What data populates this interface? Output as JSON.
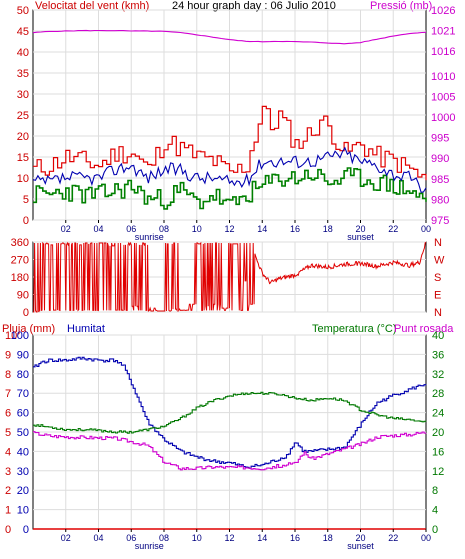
{
  "header": {
    "left_label": "Velocitat del vent (kmh)",
    "title": "24 hour graph day : 06 Julio 2010",
    "right_label": "Pressió (mb)"
  },
  "mid": {
    "dir_labels": [
      "N",
      "W",
      "S",
      "E",
      "N"
    ]
  },
  "bottom_header": {
    "rain_label": "Pluja (mm)",
    "hum_label": "Humitat",
    "temp_label": "Temperatura (°C)",
    "dew_label": "Punt rosada"
  },
  "colors": {
    "wind_gust": "#e00000",
    "wind_avg": "#0000b0",
    "wind_min": "#008000",
    "pressure": "#d000d0",
    "direction": "#e00000",
    "humidity": "#0000b0",
    "temperature": "#007800",
    "dew_point": "#d000d0",
    "rain": "#e00000",
    "frame": "#000000"
  },
  "chart_data": [
    {
      "type": "line",
      "title": "24 hour graph day : 06 Julio 2010",
      "x_ticks": [
        "02",
        "04",
        "06",
        "08",
        "10",
        "12",
        "14",
        "16",
        "18",
        "20",
        "22",
        "00"
      ],
      "x_annotations": {
        "sunrise": "sunrise",
        "sunset": "sunset",
        "sunrise_hour": 7.1,
        "sunset_hour": 20.0
      },
      "xlim": [
        0,
        24
      ],
      "y_left": {
        "label": "Velocitat del vent (kmh)",
        "ticks": [
          0,
          5,
          10,
          15,
          20,
          25,
          30,
          35,
          40,
          45,
          50
        ],
        "lim": [
          0,
          50
        ]
      },
      "y_right": {
        "label": "Pressió (mb)",
        "ticks": [
          975,
          980,
          985,
          990,
          995,
          1000,
          1005,
          1010,
          1016,
          1021,
          1026
        ],
        "lim": [
          975,
          1026
        ]
      },
      "series": [
        {
          "name": "Velocitat del vent (kmh)",
          "axis": "left",
          "x": [
            0,
            1,
            2,
            3,
            4,
            5,
            6,
            7,
            8,
            9,
            10,
            11,
            12,
            13,
            13.5,
            14,
            14.5,
            15,
            16,
            17,
            17.5,
            18,
            19,
            20,
            21,
            22,
            23,
            24
          ],
          "values": [
            12,
            13,
            15,
            14,
            13,
            16,
            16,
            12,
            19,
            17,
            15,
            14,
            11,
            13,
            20,
            27,
            22,
            25,
            18,
            21,
            24,
            22,
            16,
            18,
            15,
            14,
            12,
            9
          ]
        },
        {
          "name": "",
          "axis": "left",
          "x": [
            0,
            1,
            2,
            3,
            4,
            5,
            6,
            7,
            8,
            9,
            10,
            11,
            12,
            13,
            14,
            15,
            16,
            17,
            18,
            19,
            20,
            21,
            22,
            23,
            24
          ],
          "values": [
            9,
            9,
            10,
            10,
            10,
            12,
            13,
            10,
            12,
            12,
            10,
            10,
            9,
            9,
            14,
            14,
            14,
            14,
            15,
            16,
            14,
            13,
            11,
            10,
            7
          ]
        },
        {
          "name": "",
          "axis": "left",
          "x": [
            0,
            1,
            2,
            3,
            4,
            5,
            6,
            7,
            8,
            9,
            10,
            11,
            12,
            13,
            14,
            15,
            16,
            17,
            18,
            19,
            20,
            21,
            22,
            23,
            24
          ],
          "values": [
            6,
            6,
            7,
            6,
            6,
            7,
            8,
            5,
            5,
            7,
            4,
            6,
            3,
            6,
            8,
            10,
            10,
            11,
            9,
            10,
            10,
            9,
            8,
            7,
            4
          ]
        },
        {
          "name": "Pressió (mb)",
          "axis": "right",
          "x": [
            0,
            1,
            2,
            3,
            4,
            5,
            6,
            7,
            8,
            9,
            10,
            11,
            12,
            13,
            14,
            15,
            16,
            17,
            18,
            19,
            20,
            21,
            22,
            23,
            24
          ],
          "values": [
            1020.5,
            1020.8,
            1020.9,
            1021.0,
            1021.0,
            1021.0,
            1020.9,
            1020.9,
            1020.8,
            1020.5,
            1020.0,
            1019.4,
            1018.8,
            1018.4,
            1018.3,
            1018.4,
            1018.3,
            1018.2,
            1018.0,
            1017.8,
            1018.1,
            1018.9,
            1019.7,
            1020.3,
            1020.6
          ]
        }
      ]
    },
    {
      "type": "line",
      "title": "",
      "xlim": [
        0,
        24
      ],
      "y_left": {
        "ticks": [
          0,
          90,
          180,
          270,
          360
        ],
        "lim": [
          0,
          360
        ]
      },
      "y_right": {
        "ticks": [
          "N",
          "E",
          "S",
          "W",
          "N"
        ]
      },
      "series": [
        {
          "name": "",
          "x": [
            0,
            0.5,
            0.6,
            1.0,
            1.2,
            1.6,
            2.0,
            2.4,
            2.8,
            3.2,
            3.6,
            4.0,
            4.5,
            5.0,
            5.5,
            6.0,
            6.4,
            7.0,
            7.5,
            8.0,
            8.5,
            9.0,
            9.5,
            10.0,
            10.5,
            11.0,
            11.5,
            12.0,
            12.5,
            13.0,
            13.5,
            14.0,
            14.5,
            15.0,
            16.0,
            17.0,
            18.0,
            19.0,
            20.0,
            21.0,
            22.0,
            23.0,
            23.6,
            24.0
          ],
          "values": [
            0,
            10,
            350,
            345,
            10,
            350,
            345,
            12,
            345,
            350,
            8,
            355,
            340,
            10,
            345,
            30,
            345,
            20,
            5,
            350,
            15,
            10,
            40,
            350,
            30,
            40,
            20,
            350,
            160,
            40,
            300,
            200,
            150,
            170,
            190,
            240,
            230,
            245,
            250,
            235,
            255,
            240,
            255,
            360
          ]
        }
      ]
    },
    {
      "type": "line",
      "title": "",
      "xlim": [
        0,
        24
      ],
      "y_left_rain": {
        "label": "Pluja (mm)",
        "ticks": [
          0,
          1,
          2,
          3,
          4,
          5,
          6,
          7,
          8,
          9,
          10
        ],
        "lim": [
          0,
          10
        ]
      },
      "y_left_hum": {
        "label": "Humitat",
        "ticks": [
          0,
          10,
          20,
          30,
          40,
          50,
          60,
          70,
          80,
          90,
          100
        ],
        "lim": [
          0,
          100
        ]
      },
      "y_right": {
        "label": "Temperatura (°C)",
        "ticks": [
          0,
          4,
          8,
          12,
          16,
          20,
          24,
          28,
          32,
          36,
          40
        ],
        "lim": [
          0,
          40
        ]
      },
      "series": [
        {
          "name": "Pluja (mm)",
          "axis": "rain",
          "x": [
            0,
            24
          ],
          "values": [
            0,
            0
          ]
        },
        {
          "name": "Humitat",
          "axis": "hum",
          "x": [
            0,
            0.5,
            1,
            2,
            3,
            4,
            5,
            5.5,
            6,
            6.5,
            7,
            8,
            9,
            10,
            11,
            12,
            13,
            14,
            15,
            15.5,
            16,
            16.5,
            17,
            18,
            19,
            20,
            20.5,
            21,
            22,
            23,
            24
          ],
          "values": [
            83,
            86,
            87,
            87,
            88,
            87,
            87,
            84,
            75,
            65,
            55,
            46,
            40,
            37,
            35,
            34,
            32,
            33,
            36,
            38,
            45,
            40,
            40,
            41,
            42,
            54,
            60,
            65,
            69,
            72,
            75
          ]
        },
        {
          "name": "Temperatura (°C)",
          "axis": "right",
          "x": [
            0,
            1,
            2,
            3,
            4,
            5,
            6,
            7,
            8,
            9,
            10,
            11,
            12,
            13,
            14,
            15,
            16,
            17,
            18,
            19,
            20,
            21,
            22,
            23,
            24
          ],
          "values": [
            21.5,
            21.0,
            20.5,
            20.5,
            20.3,
            20.0,
            20.0,
            20.5,
            21.2,
            22.8,
            25.0,
            26.5,
            27.5,
            28.0,
            28.0,
            27.8,
            27.0,
            26.5,
            27.0,
            26.5,
            24.5,
            23.5,
            22.8,
            22.5,
            22.0
          ]
        },
        {
          "name": "Punt rosada",
          "axis": "right",
          "x": [
            0,
            1,
            2,
            3,
            4,
            5,
            6,
            7,
            8,
            9,
            10,
            11,
            12,
            13,
            14,
            15,
            16,
            16.5,
            17,
            18,
            19,
            20,
            21,
            22,
            23,
            24
          ],
          "values": [
            19.8,
            19.2,
            19.0,
            18.9,
            18.8,
            18.7,
            18.0,
            17.2,
            13.8,
            12.5,
            12.5,
            12.8,
            12.7,
            12.7,
            12.5,
            13.0,
            13.5,
            15.8,
            14.5,
            15.5,
            16.5,
            17.5,
            19.0,
            19.3,
            19.5,
            20.0
          ]
        }
      ]
    }
  ]
}
